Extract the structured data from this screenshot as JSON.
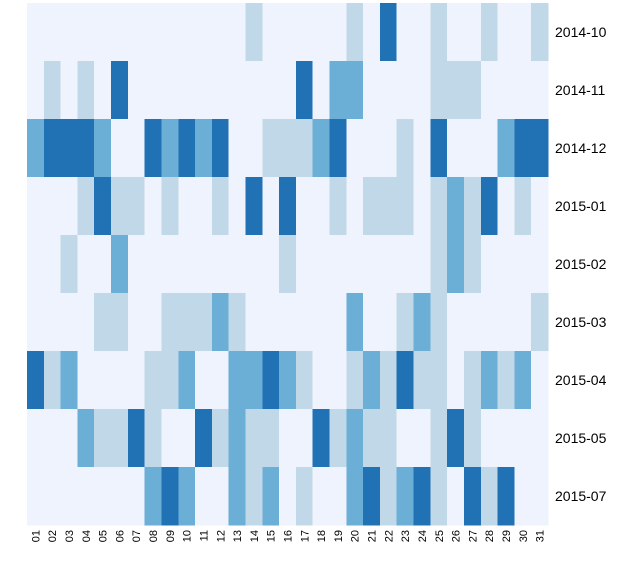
{
  "chart_data": {
    "type": "heatmap",
    "x": [
      "01",
      "02",
      "03",
      "04",
      "05",
      "06",
      "07",
      "08",
      "09",
      "10",
      "11",
      "12",
      "13",
      "14",
      "15",
      "16",
      "17",
      "18",
      "19",
      "20",
      "21",
      "22",
      "23",
      "24",
      "25",
      "26",
      "27",
      "28",
      "29",
      "30",
      "31"
    ],
    "y": [
      "2014-10",
      "2014-11",
      "2014-12",
      "2015-01",
      "2015-02",
      "2015-03",
      "2015-04",
      "2015-05",
      "2015-07"
    ],
    "colors": [
      "#eef3fd",
      "#c1d8e8",
      "#6baed6",
      "#2171b5"
    ],
    "values": [
      [
        0,
        0,
        0,
        0,
        0,
        0,
        0,
        0,
        0,
        0,
        0,
        0,
        0,
        1,
        0,
        0,
        0,
        0,
        0,
        1,
        0,
        3,
        0,
        0,
        1,
        0,
        0,
        1,
        0,
        0,
        1
      ],
      [
        0,
        1,
        0,
        1,
        0,
        3,
        0,
        0,
        0,
        0,
        0,
        0,
        0,
        0,
        0,
        0,
        3,
        0,
        2,
        2,
        0,
        0,
        0,
        0,
        1,
        1,
        1,
        0,
        0,
        0,
        0
      ],
      [
        2,
        3,
        3,
        3,
        2,
        0,
        0,
        3,
        2,
        3,
        2,
        3,
        0,
        0,
        1,
        1,
        1,
        2,
        3,
        0,
        0,
        0,
        1,
        0,
        3,
        0,
        0,
        0,
        2,
        3,
        3
      ],
      [
        0,
        0,
        0,
        1,
        3,
        1,
        1,
        0,
        1,
        0,
        0,
        1,
        0,
        3,
        0,
        3,
        0,
        0,
        1,
        0,
        1,
        1,
        1,
        0,
        1,
        2,
        1,
        3,
        0,
        1,
        0
      ],
      [
        0,
        0,
        1,
        0,
        0,
        2,
        0,
        0,
        0,
        0,
        0,
        0,
        0,
        0,
        0,
        1,
        0,
        0,
        0,
        0,
        0,
        0,
        0,
        0,
        1,
        2,
        1,
        0,
        0,
        0,
        0
      ],
      [
        0,
        0,
        0,
        0,
        1,
        1,
        0,
        0,
        1,
        1,
        1,
        2,
        1,
        0,
        0,
        0,
        0,
        0,
        0,
        2,
        0,
        0,
        1,
        2,
        1,
        0,
        0,
        0,
        0,
        0,
        1
      ],
      [
        3,
        1,
        2,
        0,
        0,
        0,
        0,
        1,
        1,
        2,
        0,
        0,
        2,
        2,
        3,
        2,
        1,
        0,
        0,
        1,
        2,
        1,
        3,
        1,
        1,
        0,
        1,
        2,
        1,
        2,
        0
      ],
      [
        0,
        0,
        0,
        2,
        1,
        1,
        3,
        1,
        0,
        0,
        3,
        1,
        2,
        1,
        1,
        0,
        0,
        3,
        1,
        2,
        1,
        1,
        0,
        0,
        1,
        3,
        1,
        0,
        0,
        0,
        0
      ],
      [
        0,
        0,
        0,
        0,
        0,
        0,
        0,
        2,
        3,
        2,
        0,
        0,
        2,
        1,
        2,
        0,
        1,
        0,
        0,
        2,
        3,
        1,
        2,
        3,
        1,
        0,
        3,
        1,
        3,
        0,
        0
      ]
    ]
  }
}
